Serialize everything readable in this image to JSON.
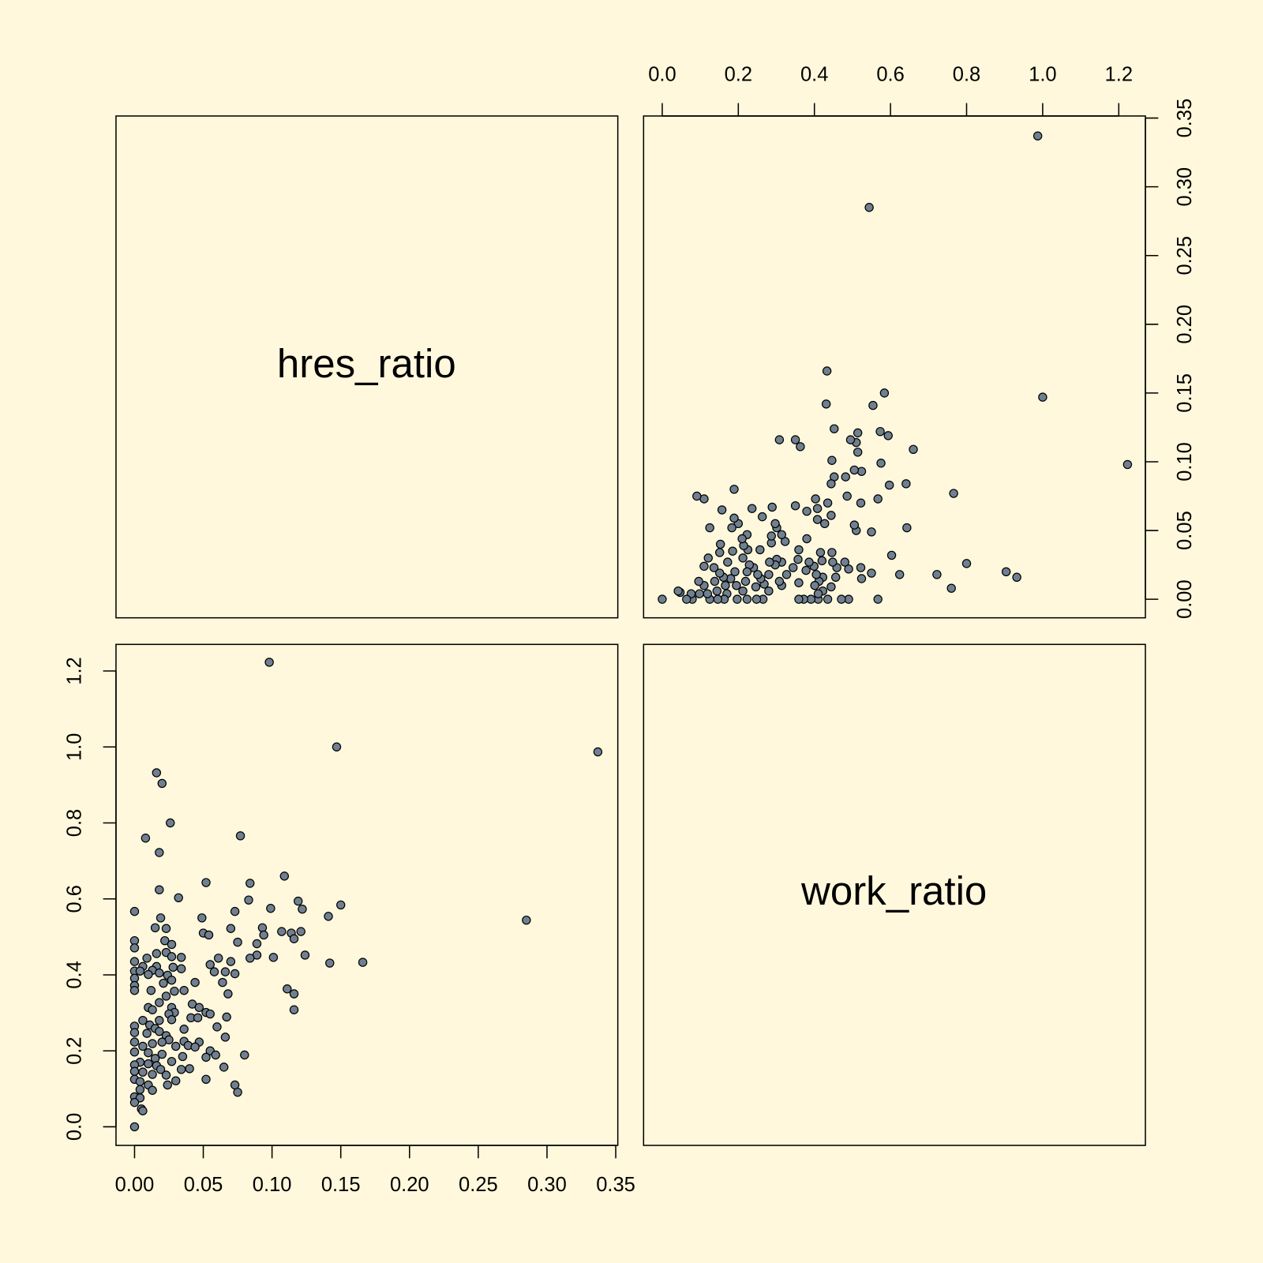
{
  "chart_data": {
    "type": "scatter-matrix",
    "color": "#708090",
    "series": [
      {
        "name": "hres_ratio",
        "lim": [
          -0.0135,
          0.3515
        ],
        "ticks": [
          {
            "value": 0,
            "label": "0.00"
          },
          {
            "value": 0.05,
            "label": "0.05"
          },
          {
            "value": 0.1,
            "label": "0.10"
          },
          {
            "value": 0.15,
            "label": "0.15"
          },
          {
            "value": 0.2,
            "label": "0.20"
          },
          {
            "value": 0.25,
            "label": "0.25"
          },
          {
            "value": 0.3,
            "label": "0.30"
          },
          {
            "value": 0.35,
            "label": "0.35"
          }
        ],
        "values": [
          0.098,
          0.147,
          0.337,
          0.016,
          0.02,
          0.026,
          0.008,
          0.077,
          0.018,
          0.109,
          0.052,
          0.084,
          0.018,
          0.032,
          0.083,
          0.119,
          0.285,
          0.15,
          0.099,
          0.122,
          0.0,
          0.073,
          0.049,
          0.019,
          0.141,
          0.015,
          0.023,
          0.07,
          0.093,
          0.05,
          0.107,
          0.114,
          0.121,
          0.054,
          0.094,
          0.116,
          0.0,
          0.022,
          0.075,
          0.089,
          0.0,
          0.027,
          0.023,
          0.016,
          0.124,
          0.027,
          0.034,
          0.009,
          0.089,
          0.101,
          0.084,
          0.061,
          0.0,
          0.07,
          0.142,
          0.166,
          0.055,
          0.006,
          0.016,
          0.028,
          0.013,
          0.0,
          0.004,
          0.034,
          0.018,
          0.058,
          0.066,
          0.073,
          0.01,
          0.024,
          0.0,
          0.027,
          0.044,
          0.064,
          0.021,
          0.0,
          0.111,
          0.012,
          0.036,
          0.029,
          0.0,
          0.068,
          0.116,
          0.023,
          0.018,
          0.042,
          0.01,
          0.027,
          0.047,
          0.116,
          0.013,
          0.052,
          0.029,
          0.055,
          0.025,
          0.041,
          0.046,
          0.067,
          0.027,
          0.006,
          0.018,
          0.0,
          0.011,
          0.06,
          0.015,
          0.036,
          0.018,
          0.0,
          0.009,
          0.023,
          0.066,
          0.025,
          0.036,
          0.0,
          0.02,
          0.013,
          0.047,
          0.039,
          0.03,
          0.044,
          0.006,
          0.055,
          0.0,
          0.01,
          0.02,
          0.08,
          0.035,
          0.052,
          0.015,
          0.059,
          0.027,
          0.004,
          0.0,
          0.01,
          0.016,
          0.065,
          0.034,
          0.04,
          0.019,
          0.0,
          0.006,
          0.013,
          0.023,
          0.052,
          0.03,
          0.0,
          0.004,
          0.024,
          0.073,
          0.01,
          0.004,
          0.013,
          0.075,
          0.0,
          0.004,
          0.0,
          0.005,
          0.006,
          0.0
        ]
      },
      {
        "name": "work_ratio",
        "lim": [
          -0.049,
          1.27
        ],
        "ticks": [
          {
            "value": 0,
            "label": "0.0"
          },
          {
            "value": 0.2,
            "label": "0.2"
          },
          {
            "value": 0.4,
            "label": "0.4"
          },
          {
            "value": 0.6,
            "label": "0.6"
          },
          {
            "value": 0.8,
            "label": "0.8"
          },
          {
            "value": 1,
            "label": "1.0"
          },
          {
            "value": 1.2,
            "label": "1.2"
          }
        ],
        "values": [
          1.223,
          1.0,
          0.987,
          0.932,
          0.904,
          0.8,
          0.76,
          0.766,
          0.722,
          0.66,
          0.643,
          0.641,
          0.624,
          0.603,
          0.597,
          0.594,
          0.544,
          0.584,
          0.575,
          0.573,
          0.567,
          0.567,
          0.55,
          0.55,
          0.554,
          0.524,
          0.522,
          0.522,
          0.524,
          0.51,
          0.514,
          0.51,
          0.514,
          0.505,
          0.505,
          0.495,
          0.49,
          0.49,
          0.486,
          0.482,
          0.471,
          0.48,
          0.459,
          0.456,
          0.452,
          0.448,
          0.446,
          0.444,
          0.452,
          0.446,
          0.444,
          0.444,
          0.435,
          0.435,
          0.431,
          0.433,
          0.427,
          0.422,
          0.422,
          0.42,
          0.412,
          0.41,
          0.41,
          0.416,
          0.405,
          0.408,
          0.408,
          0.403,
          0.401,
          0.399,
          0.391,
          0.386,
          0.38,
          0.38,
          0.378,
          0.372,
          0.363,
          0.359,
          0.359,
          0.357,
          0.359,
          0.35,
          0.35,
          0.344,
          0.327,
          0.323,
          0.314,
          0.314,
          0.314,
          0.308,
          0.308,
          0.301,
          0.301,
          0.297,
          0.297,
          0.287,
          0.287,
          0.289,
          0.282,
          0.28,
          0.28,
          0.265,
          0.268,
          0.263,
          0.259,
          0.257,
          0.251,
          0.248,
          0.246,
          0.24,
          0.236,
          0.229,
          0.225,
          0.223,
          0.223,
          0.219,
          0.223,
          0.214,
          0.212,
          0.21,
          0.212,
          0.2,
          0.197,
          0.195,
          0.191,
          0.189,
          0.185,
          0.183,
          0.18,
          0.189,
          0.172,
          0.17,
          0.163,
          0.166,
          0.161,
          0.157,
          0.151,
          0.153,
          0.151,
          0.146,
          0.144,
          0.138,
          0.136,
          0.125,
          0.121,
          0.125,
          0.119,
          0.11,
          0.11,
          0.11,
          0.098,
          0.096,
          0.091,
          0.079,
          0.076,
          0.064,
          0.047,
          0.042,
          0.0
        ]
      }
    ]
  }
}
